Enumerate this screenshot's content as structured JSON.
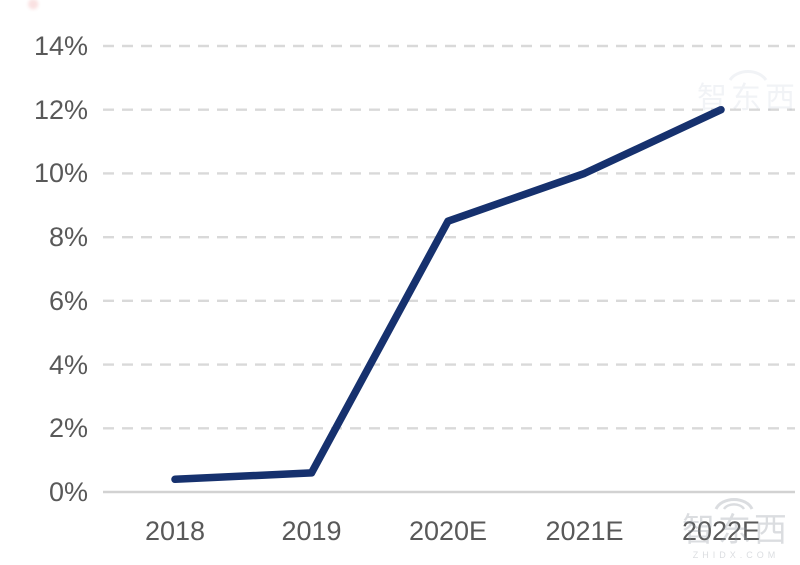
{
  "chart_data": {
    "type": "line",
    "title": "",
    "categories": [
      "2018",
      "2019",
      "2020E",
      "2021E",
      "2022E"
    ],
    "values": [
      0.4,
      0.6,
      8.5,
      10,
      12
    ],
    "value_unit": "%",
    "series": [
      {
        "name": "",
        "values": [
          0.4,
          0.6,
          8.5,
          10,
          12
        ]
      }
    ],
    "y_ticks": [
      {
        "label": "14%",
        "value": 14
      },
      {
        "label": "12%",
        "value": 12
      },
      {
        "label": "10%",
        "value": 10
      },
      {
        "label": "8%",
        "value": 8
      },
      {
        "label": "6%",
        "value": 6
      },
      {
        "label": "4%",
        "value": 4
      },
      {
        "label": "2%",
        "value": 2
      },
      {
        "label": "0%",
        "value": 0
      }
    ],
    "ylim": [
      0,
      14
    ],
    "xlabel": "",
    "ylabel": "",
    "grid": "horizontal-dashed",
    "legend": "none",
    "colors": {
      "line": "#16316e",
      "labels": "#595959",
      "gridline": "#d9d9d9",
      "axis": "#d2d2d2",
      "background": "#ffffff"
    }
  },
  "watermarks": {
    "top_right_text": "智东西",
    "bottom_right_text": "智东西",
    "bottom_right_subtext": "ZHIDX.COM"
  }
}
